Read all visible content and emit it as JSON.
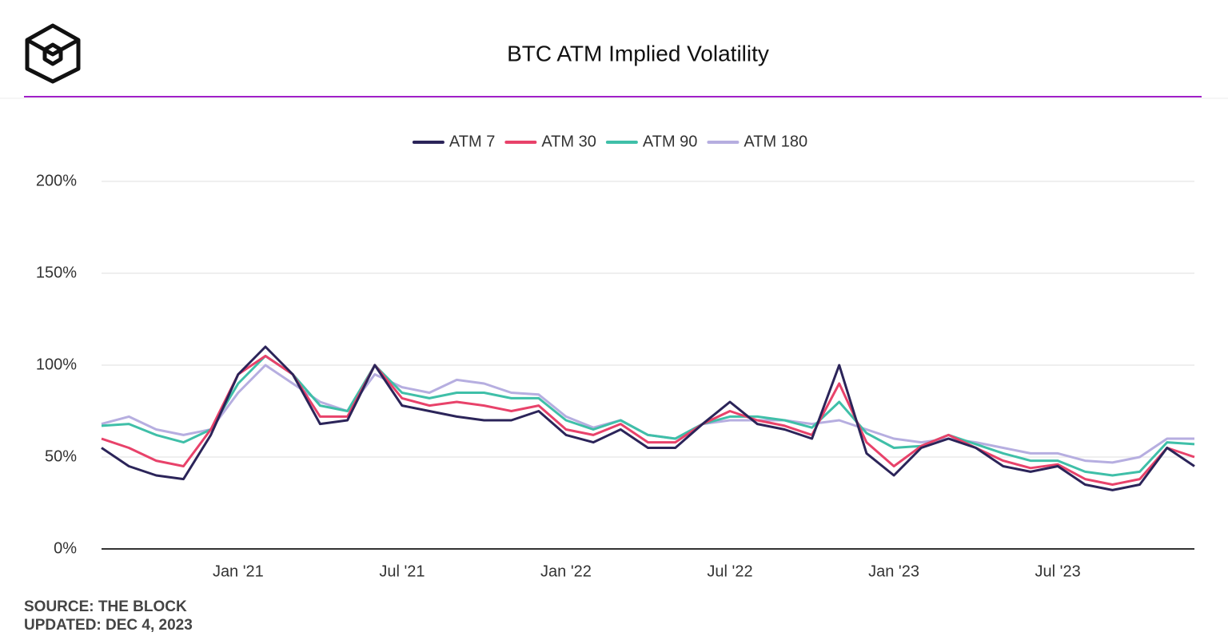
{
  "chart_data": {
    "type": "line",
    "title": "BTC ATM Implied Volatility",
    "source": "SOURCE: THE BLOCK",
    "updated": "UPDATED: DEC 4, 2023",
    "x": [
      "2020-08",
      "2020-09",
      "2020-10",
      "2020-11",
      "2020-12",
      "2021-01",
      "2021-02",
      "2021-03",
      "2021-04",
      "2021-05",
      "2021-06",
      "2021-07",
      "2021-08",
      "2021-09",
      "2021-10",
      "2021-11",
      "2021-12",
      "2022-01",
      "2022-02",
      "2022-03",
      "2022-04",
      "2022-05",
      "2022-06",
      "2022-07",
      "2022-08",
      "2022-09",
      "2022-10",
      "2022-11",
      "2022-12",
      "2023-01",
      "2023-02",
      "2023-03",
      "2023-04",
      "2023-05",
      "2023-06",
      "2023-07",
      "2023-08",
      "2023-09",
      "2023-10",
      "2023-11",
      "2023-12"
    ],
    "xlim": [
      "2020-08",
      "2023-12"
    ],
    "xticks": [
      {
        "value": "2021-01",
        "label": "Jan '21"
      },
      {
        "value": "2021-07",
        "label": "Jul '21"
      },
      {
        "value": "2022-01",
        "label": "Jan '22"
      },
      {
        "value": "2022-07",
        "label": "Jul '22"
      },
      {
        "value": "2023-01",
        "label": "Jan '23"
      },
      {
        "value": "2023-07",
        "label": "Jul '23"
      }
    ],
    "ylim": [
      0,
      200
    ],
    "yticks": [
      {
        "value": 0,
        "label": "0%"
      },
      {
        "value": 50,
        "label": "50%"
      },
      {
        "value": 100,
        "label": "100%"
      },
      {
        "value": 150,
        "label": "150%"
      },
      {
        "value": 200,
        "label": "200%"
      }
    ],
    "grid": true,
    "series": [
      {
        "name": "ATM 7",
        "color": "#2b2459",
        "values": [
          55,
          45,
          40,
          38,
          62,
          95,
          110,
          95,
          68,
          70,
          100,
          78,
          75,
          72,
          70,
          70,
          75,
          62,
          58,
          65,
          55,
          55,
          68,
          80,
          68,
          65,
          60,
          100,
          52,
          40,
          55,
          60,
          55,
          45,
          42,
          45,
          35,
          32,
          35,
          55,
          45
        ]
      },
      {
        "name": "ATM 30",
        "color": "#e8426a",
        "values": [
          60,
          55,
          48,
          45,
          65,
          95,
          105,
          95,
          72,
          72,
          100,
          82,
          78,
          80,
          78,
          75,
          78,
          65,
          62,
          68,
          58,
          58,
          68,
          75,
          70,
          67,
          62,
          90,
          58,
          45,
          56,
          62,
          55,
          48,
          44,
          46,
          38,
          35,
          38,
          55,
          50
        ]
      },
      {
        "name": "ATM 90",
        "color": "#3fbfa8",
        "values": [
          67,
          68,
          62,
          58,
          65,
          90,
          105,
          95,
          78,
          75,
          100,
          85,
          82,
          85,
          85,
          82,
          82,
          70,
          65,
          70,
          62,
          60,
          68,
          72,
          72,
          70,
          66,
          80,
          63,
          55,
          56,
          62,
          57,
          52,
          48,
          48,
          42,
          40,
          42,
          58,
          57
        ]
      },
      {
        "name": "ATM 180",
        "color": "#b6aee0",
        "values": [
          68,
          72,
          65,
          62,
          65,
          85,
          100,
          90,
          80,
          75,
          95,
          88,
          85,
          92,
          90,
          85,
          84,
          72,
          66,
          70,
          62,
          60,
          68,
          70,
          70,
          70,
          68,
          70,
          65,
          60,
          58,
          60,
          58,
          55,
          52,
          52,
          48,
          47,
          50,
          60,
          60
        ]
      }
    ]
  }
}
